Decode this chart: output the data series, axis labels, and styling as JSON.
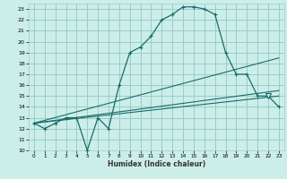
{
  "xlabel": "Humidex (Indice chaleur)",
  "bg_color": "#cceee8",
  "grid_color": "#99cccc",
  "line_color": "#1a6b6b",
  "xlim": [
    -0.5,
    23.5
  ],
  "ylim": [
    10,
    23.5
  ],
  "xticks": [
    0,
    1,
    2,
    3,
    4,
    5,
    6,
    7,
    8,
    9,
    10,
    11,
    12,
    13,
    14,
    15,
    16,
    17,
    18,
    19,
    20,
    21,
    22,
    23
  ],
  "yticks": [
    10,
    11,
    12,
    13,
    14,
    15,
    16,
    17,
    18,
    19,
    20,
    21,
    22,
    23
  ],
  "series1_x": [
    0,
    1,
    2,
    3,
    4,
    5,
    6,
    7,
    8,
    9,
    10,
    11,
    12,
    13,
    14,
    15,
    16,
    17,
    18,
    19,
    20,
    21,
    22,
    23
  ],
  "series1_y": [
    12.5,
    12.0,
    12.5,
    13.0,
    13.0,
    10.0,
    13.0,
    12.0,
    16.0,
    19.0,
    19.5,
    20.5,
    22.0,
    22.5,
    23.2,
    23.2,
    23.0,
    22.5,
    19.0,
    17.0,
    17.0,
    15.0,
    15.0,
    14.0
  ],
  "series2_x": [
    0,
    23
  ],
  "series2_y": [
    12.5,
    15.0
  ],
  "series3_x": [
    0,
    23
  ],
  "series3_y": [
    12.5,
    18.5
  ],
  "series4_x": [
    0,
    23
  ],
  "series4_y": [
    12.5,
    15.5
  ],
  "tri_x": 22,
  "tri_y": 15.0
}
